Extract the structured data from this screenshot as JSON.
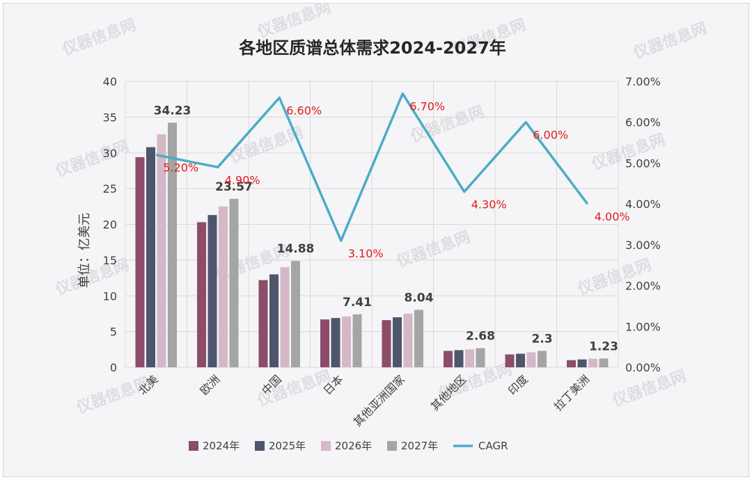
{
  "chart_data": {
    "type": "bar",
    "title": "各地区质谱总体需求2024-2027年",
    "ylabel": "单位：亿美元",
    "ylim": [
      0,
      40
    ],
    "y_ticks": [
      "0",
      "5",
      "10",
      "15",
      "20",
      "25",
      "30",
      "35",
      "40"
    ],
    "y2lim": [
      0,
      0.07
    ],
    "y2_ticks": [
      "0.00%",
      "1.00%",
      "2.00%",
      "3.00%",
      "4.00%",
      "5.00%",
      "6.00%",
      "7.00%"
    ],
    "categories": [
      "北美",
      "欧洲",
      "中国",
      "日本",
      "其他亚洲国家",
      "其他地区",
      "印度",
      "拉丁美洲"
    ],
    "series": [
      {
        "name": "2024年",
        "color": "#8c4c6a",
        "values": [
          29.4,
          20.3,
          12.2,
          6.7,
          6.6,
          2.3,
          1.8,
          1.0
        ]
      },
      {
        "name": "2025年",
        "color": "#4d566c",
        "values": [
          30.8,
          21.3,
          13.0,
          6.9,
          7.0,
          2.4,
          1.9,
          1.1
        ]
      },
      {
        "name": "2026年",
        "color": "#d5b8c8",
        "values": [
          32.6,
          22.5,
          14.0,
          7.1,
          7.5,
          2.5,
          2.1,
          1.2
        ]
      },
      {
        "name": "2027年",
        "color": "#a5a5a5",
        "values": [
          34.23,
          23.57,
          14.88,
          7.41,
          8.04,
          2.68,
          2.3,
          1.23
        ]
      }
    ],
    "value_labels": [
      "34.23",
      "23.57",
      "14.88",
      "7.41",
      "8.04",
      "2.68",
      "2.3",
      "1.23"
    ],
    "line": {
      "name": "CAGR",
      "color": "#4bacc6",
      "values": [
        0.052,
        0.049,
        0.066,
        0.031,
        0.067,
        0.043,
        0.06,
        0.04
      ],
      "labels": [
        "5.20%",
        "4.90%",
        "6.60%",
        "3.10%",
        "6.70%",
        "4.30%",
        "6.00%",
        "4.00%"
      ],
      "label_color": "#e31a1c"
    },
    "legend_position": "bottom"
  },
  "watermark": {
    "text": "仪器信息网"
  }
}
